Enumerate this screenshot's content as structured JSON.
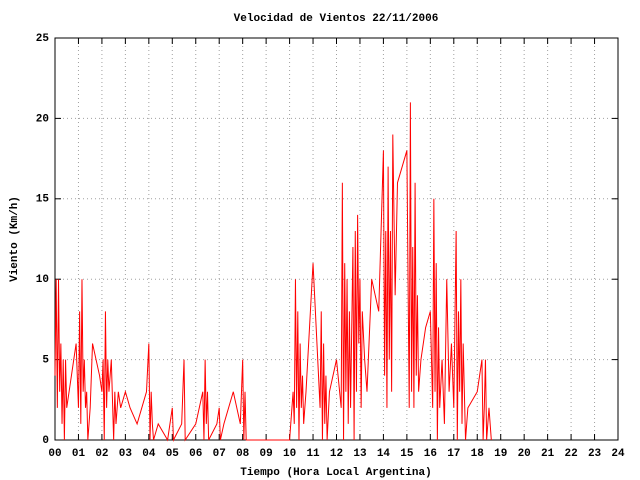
{
  "chart_data": {
    "type": "line",
    "title": "Velocidad de Vientos 22/11/2006",
    "x_label": "Tiempo (Hora Local Argentina)",
    "y_label": "Viento (Km/h)",
    "xlim": [
      0,
      24
    ],
    "ylim": [
      0,
      25
    ],
    "xticks": [
      {
        "value": 0,
        "label": "00"
      },
      {
        "value": 1,
        "label": "01"
      },
      {
        "value": 2,
        "label": "02"
      },
      {
        "value": 3,
        "label": "03"
      },
      {
        "value": 4,
        "label": "04"
      },
      {
        "value": 5,
        "label": "05"
      },
      {
        "value": 6,
        "label": "06"
      },
      {
        "value": 7,
        "label": "07"
      },
      {
        "value": 8,
        "label": "08"
      },
      {
        "value": 9,
        "label": "09"
      },
      10,
      11,
      12,
      13,
      14,
      15,
      16,
      17,
      18,
      19,
      20,
      21,
      22,
      23,
      24
    ],
    "yticks": [
      0,
      5,
      10,
      15,
      20,
      25
    ],
    "grid": true,
    "series": [
      {
        "color": "#ff0000",
        "x": [
          0,
          0.05,
          0.1,
          0.15,
          0.2,
          0.25,
          0.3,
          0.35,
          0.4,
          0.45,
          0.5,
          0.7,
          0.9,
          1.0,
          1.05,
          1.1,
          1.15,
          1.2,
          1.25,
          1.3,
          1.35,
          1.4,
          1.5,
          1.6,
          1.9,
          2.0,
          2.05,
          2.1,
          2.15,
          2.2,
          2.25,
          2.3,
          2.4,
          2.5,
          2.55,
          2.6,
          2.7,
          2.8,
          3.0,
          3.2,
          3.5,
          3.9,
          4.0,
          4.05,
          4.1,
          4.15,
          4.2,
          4.4,
          4.8,
          5.0,
          5.05,
          5.4,
          5.5,
          5.55,
          6.0,
          6.3,
          6.35,
          6.4,
          6.45,
          6.5,
          6.55,
          6.9,
          7.0,
          7.05,
          7.2,
          7.6,
          7.9,
          8.0,
          8.05,
          8.1,
          8.15,
          9.0,
          10.0,
          10.15,
          10.2,
          10.25,
          10.3,
          10.35,
          10.4,
          10.45,
          10.5,
          10.55,
          10.6,
          10.7,
          11.0,
          11.3,
          11.35,
          11.4,
          11.45,
          11.5,
          11.55,
          11.6,
          11.7,
          12.0,
          12.2,
          12.25,
          12.3,
          12.35,
          12.4,
          12.45,
          12.5,
          12.55,
          12.6,
          12.7,
          12.75,
          12.8,
          12.85,
          12.9,
          12.95,
          13.0,
          13.05,
          13.1,
          13.2,
          13.3,
          13.5,
          13.8,
          14.0,
          14.05,
          14.1,
          14.15,
          14.2,
          14.25,
          14.3,
          14.35,
          14.4,
          14.5,
          14.6,
          15.0,
          15.1,
          15.15,
          15.2,
          15.25,
          15.3,
          15.35,
          15.4,
          15.45,
          15.5,
          15.6,
          15.8,
          16.0,
          16.1,
          16.15,
          16.2,
          16.25,
          16.3,
          16.35,
          16.4,
          16.5,
          16.6,
          16.7,
          16.8,
          16.9,
          17.0,
          17.1,
          17.15,
          17.2,
          17.25,
          17.3,
          17.35,
          17.4,
          17.5,
          17.6,
          18.0,
          18.2,
          18.25,
          18.3,
          18.35,
          18.4,
          18.5,
          18.6
        ],
        "values": [
          4,
          10,
          2,
          10,
          3,
          6,
          1,
          5,
          0,
          5,
          2,
          4,
          6,
          2,
          8,
          1,
          10,
          3,
          5,
          2,
          3,
          0,
          2,
          6,
          4,
          3,
          5,
          0,
          8,
          2,
          5,
          3,
          5,
          0,
          3,
          1,
          3,
          2,
          3,
          2,
          1,
          3,
          6,
          0,
          3,
          1,
          0,
          1,
          0,
          2,
          0,
          1,
          5,
          0,
          1,
          3,
          0,
          5,
          1,
          3,
          0,
          1,
          2,
          0,
          1,
          3,
          1,
          5,
          0,
          3,
          0,
          0,
          0,
          3,
          1,
          10,
          2,
          8,
          0,
          6,
          2,
          4,
          1,
          3,
          11,
          2,
          8,
          0,
          6,
          1,
          4,
          0,
          3,
          5,
          2,
          16,
          0,
          11,
          3,
          10,
          1,
          8,
          2,
          12,
          0,
          13,
          3,
          14,
          6,
          10,
          2,
          8,
          5,
          3,
          10,
          8,
          18,
          4,
          13,
          2,
          17,
          5,
          13,
          3,
          19,
          9,
          16,
          18,
          2,
          21,
          3,
          12,
          2,
          16,
          4,
          9,
          3,
          5,
          7,
          8,
          2,
          15,
          3,
          11,
          0,
          7,
          2,
          5,
          1,
          10,
          3,
          6,
          2,
          13,
          0,
          8,
          3,
          10,
          1,
          6,
          0,
          2,
          3,
          5,
          0,
          2,
          5,
          0,
          2,
          0
        ]
      }
    ]
  }
}
